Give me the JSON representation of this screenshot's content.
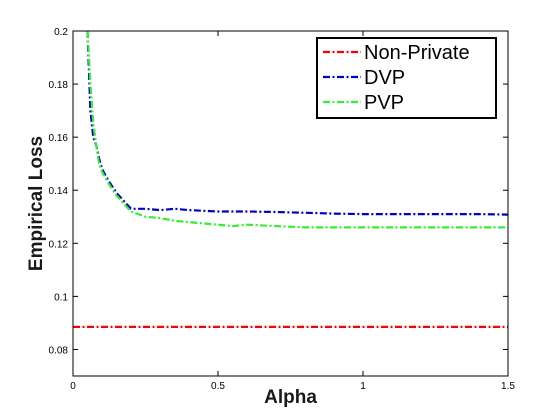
{
  "chart_data": {
    "type": "line",
    "title": "",
    "xlabel": "Alpha",
    "ylabel": "Empirical Loss",
    "xlim": [
      0,
      1.5
    ],
    "ylim": [
      0.07,
      0.2
    ],
    "xticks": [
      0,
      0.5,
      1,
      1.5
    ],
    "xtick_labels": [
      "0",
      "0.5",
      "1",
      "1.5"
    ],
    "yticks": [
      0.08,
      0.1,
      0.12,
      0.14,
      0.16,
      0.18,
      0.2
    ],
    "ytick_labels": [
      "0.08",
      "0.1",
      "0.12",
      "0.14",
      "0.16",
      "0.18",
      "0.2"
    ],
    "grid": false,
    "legend_position": "top-right",
    "series": [
      {
        "name": "Non-Private",
        "color": "#ff0000",
        "style": "dashdot",
        "x": [
          0,
          1.5
        ],
        "y": [
          0.0885,
          0.0885
        ]
      },
      {
        "name": "DVP",
        "color": "#0000cc",
        "style": "dashdot",
        "x": [
          0.05,
          0.06,
          0.07,
          0.08,
          0.09,
          0.1,
          0.12,
          0.15,
          0.2,
          0.25,
          0.3,
          0.35,
          0.4,
          0.5,
          0.6,
          0.7,
          0.8,
          0.9,
          1.0,
          1.1,
          1.2,
          1.3,
          1.4,
          1.5
        ],
        "y": [
          0.2,
          0.17,
          0.16,
          0.157,
          0.152,
          0.148,
          0.144,
          0.139,
          0.133,
          0.133,
          0.1325,
          0.133,
          0.1325,
          0.132,
          0.132,
          0.1318,
          0.1315,
          0.1312,
          0.131,
          0.131,
          0.131,
          0.131,
          0.131,
          0.1308
        ]
      },
      {
        "name": "PVP",
        "color": "#33ee33",
        "style": "dashdot",
        "x": [
          0.05,
          0.055,
          0.06,
          0.07,
          0.08,
          0.09,
          0.1,
          0.12,
          0.15,
          0.2,
          0.25,
          0.3,
          0.35,
          0.4,
          0.5,
          0.55,
          0.6,
          0.7,
          0.8,
          0.9,
          1.0,
          1.1,
          1.2,
          1.3,
          1.4,
          1.5
        ],
        "y": [
          0.2,
          0.19,
          0.18,
          0.165,
          0.157,
          0.15,
          0.147,
          0.143,
          0.138,
          0.132,
          0.13,
          0.1295,
          0.1285,
          0.128,
          0.127,
          0.1265,
          0.127,
          0.1265,
          0.126,
          0.126,
          0.126,
          0.126,
          0.126,
          0.126,
          0.126,
          0.126
        ]
      }
    ]
  }
}
